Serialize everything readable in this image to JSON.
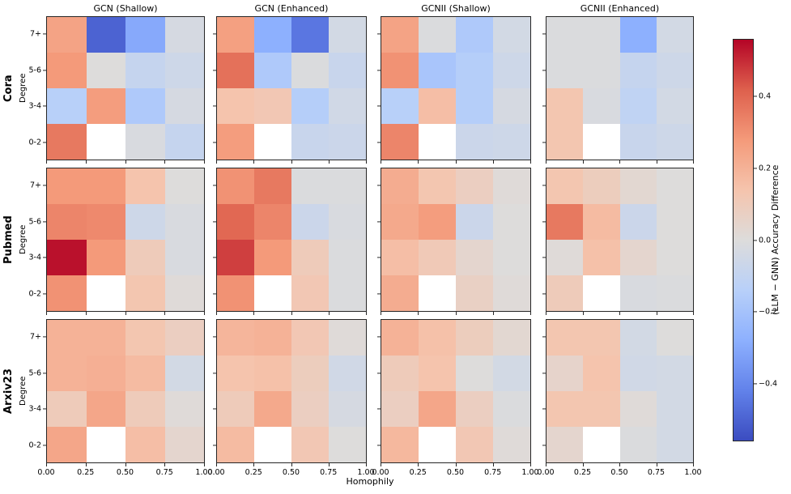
{
  "figure": {
    "xlabel": "Homophily",
    "background_color": "#ffffff"
  },
  "colorbar": {
    "label": "(LLM − GNN) Accuracy Difference",
    "vmin": -0.56,
    "vmax": 0.56,
    "ticks": [
      {
        "label": "0.4",
        "value": 0.4
      },
      {
        "label": "0.2",
        "value": 0.2
      },
      {
        "label": "0.0",
        "value": 0.0
      },
      {
        "label": "−0.2",
        "value": -0.2
      },
      {
        "label": "−0.4",
        "value": -0.4
      }
    ]
  },
  "chart_data": {
    "type": "heatmap",
    "column_titles": [
      "GCN (Shallow)",
      "GCN (Enhanced)",
      "GCNII (Shallow)",
      "GCNII (Enhanced)"
    ],
    "row_titles": [
      "Cora",
      "Pubmed",
      "Arxiv23"
    ],
    "row_axis_label": "Degree",
    "xlabel": "Homophily",
    "x_tick_labels": [
      "0.00",
      "0.25",
      "0.50",
      "0.75",
      "1.00"
    ],
    "y_tick_labels_top_to_bottom": [
      "7+",
      "5-6",
      "3-4",
      "0-2"
    ],
    "colormap": "coolwarm",
    "colormap_anchors": [
      "#3b4cc0",
      "#6282ea",
      "#8db0fe",
      "#b8d0f9",
      "#dddcdb",
      "#f5c4ad",
      "#f49a7a",
      "#de604d",
      "#b40426"
    ],
    "missing_value_color": "#ffffff",
    "vmin": -0.56,
    "vmax": 0.56,
    "panels": [
      {
        "dataset": "Cora",
        "model": "GCN (Shallow)",
        "values": [
          [
            0.25,
            -0.5,
            -0.3,
            -0.03
          ],
          [
            0.28,
            0.0,
            -0.09,
            -0.06
          ],
          [
            -0.14,
            0.27,
            -0.17,
            -0.03
          ],
          [
            0.36,
            null,
            -0.02,
            -0.09
          ]
        ]
      },
      {
        "dataset": "Cora",
        "model": "GCN (Enhanced)",
        "values": [
          [
            0.26,
            -0.28,
            -0.45,
            -0.04
          ],
          [
            0.38,
            -0.17,
            -0.01,
            -0.08
          ],
          [
            0.14,
            0.12,
            -0.15,
            -0.05
          ],
          [
            0.27,
            null,
            -0.08,
            -0.07
          ]
        ]
      },
      {
        "dataset": "Cora",
        "model": "GCNII (Shallow)",
        "values": [
          [
            0.25,
            -0.01,
            -0.17,
            -0.04
          ],
          [
            0.3,
            -0.19,
            -0.15,
            -0.06
          ],
          [
            -0.14,
            0.16,
            -0.15,
            -0.03
          ],
          [
            0.33,
            null,
            -0.07,
            -0.06
          ]
        ]
      },
      {
        "dataset": "Cora",
        "model": "GCNII (Enhanced)",
        "values": [
          [
            -0.01,
            -0.01,
            -0.28,
            -0.04
          ],
          [
            -0.01,
            -0.01,
            -0.09,
            -0.06
          ],
          [
            0.13,
            -0.02,
            -0.11,
            -0.04
          ],
          [
            0.13,
            null,
            -0.08,
            -0.06
          ]
        ]
      },
      {
        "dataset": "Pubmed",
        "model": "GCN (Shallow)",
        "values": [
          [
            0.28,
            0.28,
            0.14,
            0.0
          ],
          [
            0.33,
            0.32,
            -0.06,
            -0.02
          ],
          [
            0.54,
            0.28,
            0.1,
            -0.02
          ],
          [
            0.3,
            null,
            0.13,
            0.01
          ]
        ]
      },
      {
        "dataset": "Pubmed",
        "model": "GCN (Enhanced)",
        "values": [
          [
            0.3,
            0.36,
            -0.01,
            -0.01
          ],
          [
            0.4,
            0.33,
            -0.07,
            -0.02
          ],
          [
            0.47,
            0.28,
            0.1,
            -0.01
          ],
          [
            0.3,
            null,
            0.12,
            -0.01
          ]
        ]
      },
      {
        "dataset": "Pubmed",
        "model": "GCNII (Shallow)",
        "values": [
          [
            0.22,
            0.13,
            0.08,
            0.01
          ],
          [
            0.23,
            0.27,
            -0.07,
            0.0
          ],
          [
            0.16,
            0.11,
            0.04,
            0.0
          ],
          [
            0.22,
            null,
            0.07,
            0.01
          ]
        ]
      },
      {
        "dataset": "Pubmed",
        "model": "GCNII (Enhanced)",
        "values": [
          [
            0.13,
            0.09,
            0.03,
            0.0
          ],
          [
            0.36,
            0.17,
            -0.07,
            0.0
          ],
          [
            0.01,
            0.15,
            0.04,
            0.0
          ],
          [
            0.1,
            null,
            -0.02,
            -0.01
          ]
        ]
      },
      {
        "dataset": "Arxiv23",
        "model": "GCN (Shallow)",
        "values": [
          [
            0.2,
            0.2,
            0.13,
            0.08
          ],
          [
            0.2,
            0.21,
            0.17,
            -0.04
          ],
          [
            0.1,
            0.24,
            0.1,
            0.01
          ],
          [
            0.24,
            null,
            0.16,
            0.04
          ]
        ]
      },
      {
        "dataset": "Arxiv23",
        "model": "GCN (Enhanced)",
        "values": [
          [
            0.19,
            0.2,
            0.12,
            0.01
          ],
          [
            0.14,
            0.15,
            0.09,
            -0.05
          ],
          [
            0.1,
            0.23,
            0.08,
            -0.03
          ],
          [
            0.17,
            null,
            0.12,
            0.0
          ]
        ]
      },
      {
        "dataset": "Arxiv23",
        "model": "GCNII (Shallow)",
        "values": [
          [
            0.2,
            0.15,
            0.09,
            0.03
          ],
          [
            0.1,
            0.14,
            0.0,
            -0.04
          ],
          [
            0.08,
            0.24,
            0.08,
            -0.01
          ],
          [
            0.18,
            null,
            0.12,
            0.01
          ]
        ]
      },
      {
        "dataset": "Arxiv23",
        "model": "GCNII (Enhanced)",
        "values": [
          [
            0.13,
            0.13,
            -0.04,
            0.0
          ],
          [
            0.05,
            0.14,
            -0.05,
            -0.04
          ],
          [
            0.13,
            0.13,
            0.01,
            -0.04
          ],
          [
            0.04,
            null,
            -0.01,
            -0.04
          ]
        ]
      }
    ]
  }
}
